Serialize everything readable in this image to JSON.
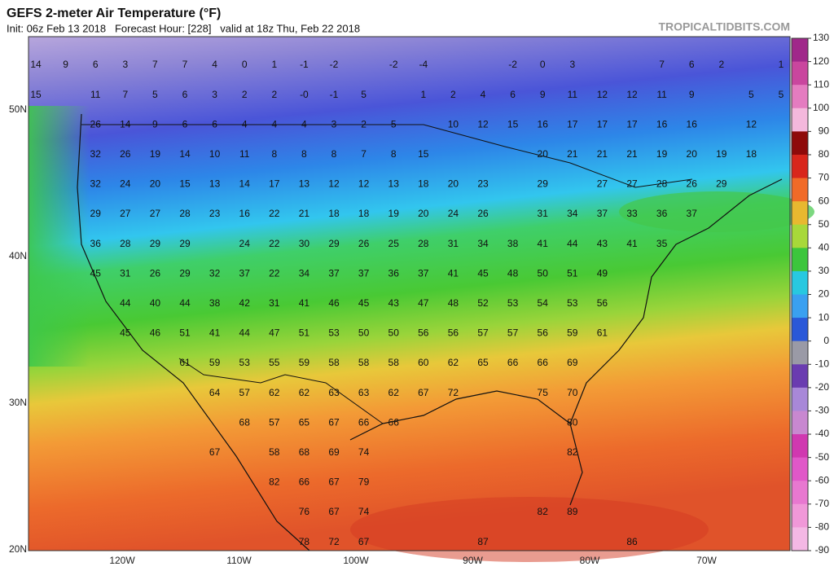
{
  "header": {
    "title": "GEFS 2-meter Air Temperature (°F)",
    "subtitle": "Init: 06z Feb 13 2018   Forecast Hour: [228]   valid at 18z Thu, Feb 22 2018",
    "credit": "TROPICALTIDBITS.COM"
  },
  "map": {
    "lat_labels": [
      "50N",
      "40N",
      "30N",
      "20N"
    ],
    "lon_labels": [
      "120W",
      "110W",
      "100W",
      "90W",
      "80W",
      "70W"
    ],
    "colorbar_ticks": [
      130,
      120,
      110,
      100,
      90,
      80,
      70,
      60,
      50,
      40,
      30,
      20,
      10,
      0,
      -10,
      -20,
      -30,
      -40,
      -50,
      -60,
      -70,
      -80,
      -90
    ],
    "values": [
      [
        14,
        9,
        6,
        3,
        7,
        7,
        4,
        0,
        1,
        -1,
        -2,
        -2,
        -4,
        -2,
        0,
        3,
        7,
        6,
        2,
        1
      ],
      [
        15,
        11,
        7,
        5,
        6,
        3,
        2,
        2,
        {
          "value": 0,
          "label": "-0"
        },
        -1,
        5,
        1,
        2,
        4,
        6,
        9,
        11,
        12,
        12,
        11,
        9,
        5,
        5
      ],
      [
        26,
        14,
        9,
        6,
        6,
        4,
        4,
        4,
        3,
        2,
        5,
        10,
        12,
        15,
        16,
        17,
        17,
        17,
        16,
        16,
        12
      ],
      [
        32,
        26,
        19,
        14,
        10,
        11,
        8,
        8,
        8,
        7,
        8,
        15,
        20,
        21,
        21,
        21,
        19,
        20,
        19,
        18
      ],
      [
        32,
        24,
        20,
        15,
        13,
        14,
        17,
        13,
        12,
        12,
        13,
        18,
        20,
        23,
        29,
        27,
        27,
        28,
        26,
        29
      ],
      [
        29,
        27,
        27,
        28,
        23,
        16,
        22,
        21,
        18,
        18,
        19,
        20,
        24,
        26,
        31,
        34,
        37,
        33,
        36,
        37
      ],
      [
        36,
        28,
        29,
        29,
        24,
        22,
        30,
        29,
        26,
        25,
        28,
        31,
        34,
        38,
        41,
        44,
        43,
        41,
        35
      ],
      [
        45,
        31,
        26,
        29,
        32,
        37,
        22,
        34,
        37,
        37,
        36,
        37,
        41,
        45,
        48,
        50,
        51,
        49
      ],
      [
        44,
        40,
        44,
        38,
        42,
        31,
        41,
        46,
        45,
        43,
        47,
        48,
        52,
        53,
        54,
        53,
        56
      ],
      [
        45,
        46,
        51,
        41,
        44,
        47,
        51,
        53,
        50,
        50,
        56,
        56,
        57,
        57,
        56,
        59,
        61
      ],
      [
        61,
        59,
        53,
        55,
        59,
        58,
        58,
        58,
        60,
        62,
        65,
        66,
        66,
        69
      ],
      [
        64,
        57,
        62,
        62,
        63,
        63,
        62,
        67,
        72,
        75,
        70
      ],
      [
        68,
        57,
        65,
        67,
        66,
        66,
        80
      ],
      [
        67,
        58,
        68,
        69,
        74,
        82
      ],
      [
        82,
        66,
        67,
        79
      ],
      [
        76,
        67,
        74,
        82,
        89
      ],
      [
        78,
        72,
        67,
        87,
        86
      ]
    ]
  }
}
